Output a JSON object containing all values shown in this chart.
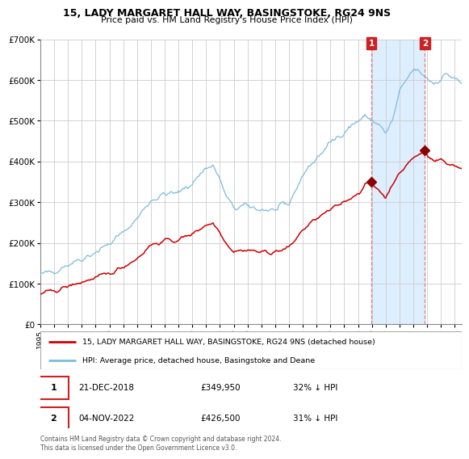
{
  "title1": "15, LADY MARGARET HALL WAY, BASINGSTOKE, RG24 9NS",
  "title2": "Price paid vs. HM Land Registry's House Price Index (HPI)",
  "legend1": "15, LADY MARGARET HALL WAY, BASINGSTOKE, RG24 9NS (detached house)",
  "legend2": "HPI: Average price, detached house, Basingstoke and Deane",
  "annotation1_date": "21-DEC-2018",
  "annotation1_price": "£349,950",
  "annotation1_hpi": "32% ↓ HPI",
  "annotation2_date": "04-NOV-2022",
  "annotation2_price": "£426,500",
  "annotation2_hpi": "31% ↓ HPI",
  "footer": "Contains HM Land Registry data © Crown copyright and database right 2024.\nThis data is licensed under the Open Government Licence v3.0.",
  "hpi_color": "#7bbcde",
  "price_color": "#cc0000",
  "marker_color": "#8b0000",
  "vline_color": "#e08080",
  "shade_color": "#ddeeff",
  "grid_color": "#cccccc",
  "annotation_box_color": "#cc2222",
  "ylim": [
    0,
    700000
  ],
  "yticks": [
    0,
    100000,
    200000,
    300000,
    400000,
    500000,
    600000,
    700000
  ],
  "xlim_start": 1995.0,
  "xlim_end": 2025.5,
  "sale1_x": 2018.97,
  "sale1_y": 349950,
  "sale2_x": 2022.84,
  "sale2_y": 426500
}
